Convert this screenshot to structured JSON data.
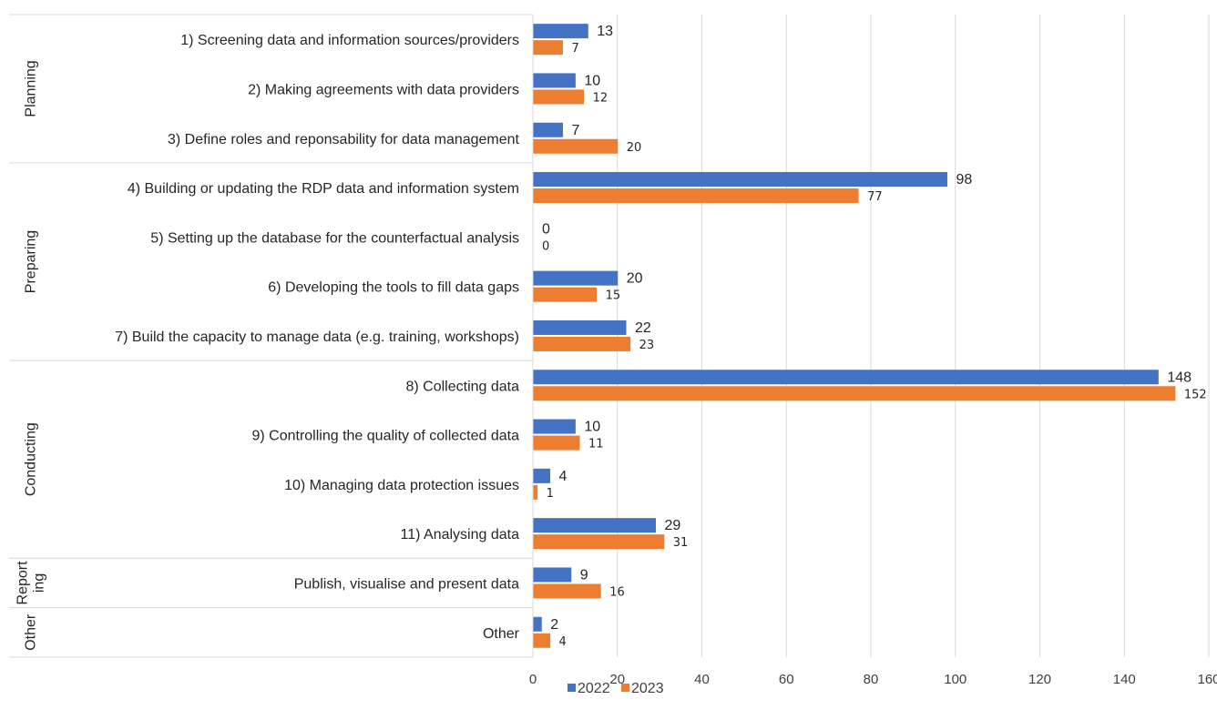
{
  "chart_data": {
    "type": "bar",
    "orientation": "horizontal",
    "categories": [
      "1) Screening data and information sources/providers",
      "2) Making agreements with data providers",
      "3) Define roles and reponsability for data management",
      "4) Building or updating the RDP data and information system",
      "5) Setting up the database for the counterfactual analysis",
      "6) Developing the tools to fill data gaps",
      "7) Build the capacity to manage data (e.g. training, workshops)",
      "8) Collecting data",
      "9) Controlling the quality of collected data",
      "10) Managing data protection issues",
      "11) Analysing data",
      "Publish, visualise and present data",
      "Other"
    ],
    "groups": [
      {
        "name": "Planning",
        "lines": [
          "Planning"
        ],
        "start": 0,
        "end": 2
      },
      {
        "name": "Preparing",
        "lines": [
          "Preparing"
        ],
        "start": 3,
        "end": 6
      },
      {
        "name": "Conducting",
        "lines": [
          "Conducting"
        ],
        "start": 7,
        "end": 10
      },
      {
        "name": "Reporting",
        "lines": [
          "Report",
          "ing"
        ],
        "start": 11,
        "end": 11
      },
      {
        "name": "Other",
        "lines": [
          "Other"
        ],
        "start": 12,
        "end": 12
      }
    ],
    "series": [
      {
        "name": "2022",
        "color": "#4472C4",
        "values": [
          13,
          10,
          7,
          98,
          0,
          20,
          22,
          148,
          10,
          4,
          29,
          9,
          2
        ]
      },
      {
        "name": "2023",
        "color": "#ED7D31",
        "values": [
          7,
          12,
          20,
          77,
          0,
          15,
          23,
          152,
          11,
          1,
          31,
          16,
          4
        ]
      }
    ],
    "xlim": [
      0,
      160
    ],
    "xticks": [
      0,
      20,
      40,
      60,
      80,
      100,
      120,
      140,
      160
    ],
    "grid": true,
    "legend_position": "bottom",
    "title": "",
    "xlabel": "",
    "ylabel": ""
  }
}
